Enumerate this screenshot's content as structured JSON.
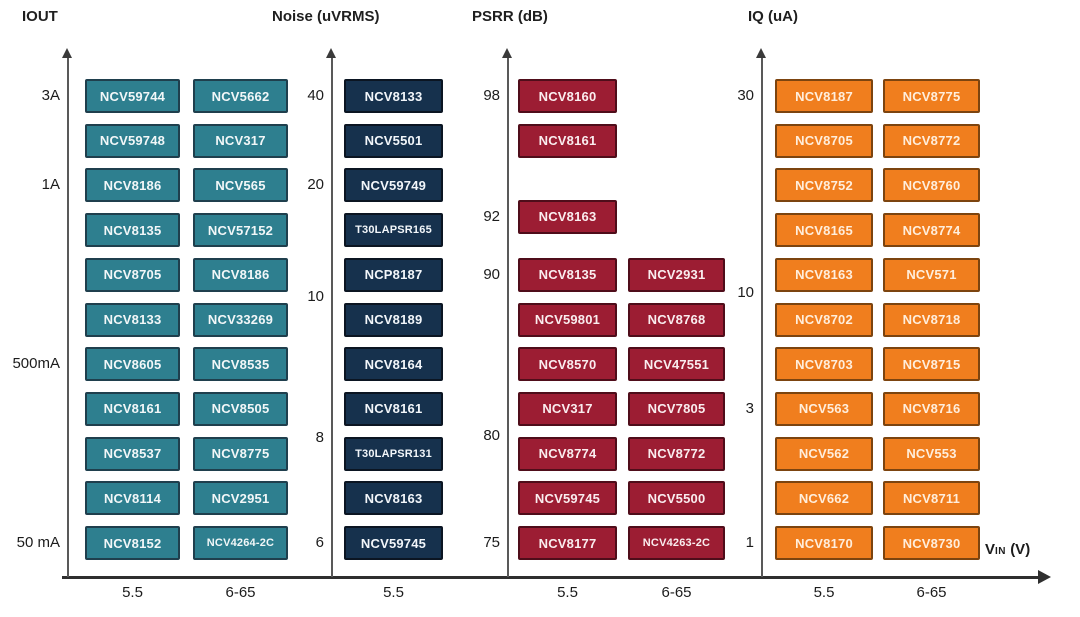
{
  "colors": {
    "axis_line": "#595959",
    "baseline": "#2f2f2f",
    "tick_text": "#1c1c1c",
    "boxes": {
      "teal": {
        "fill": "#2E7F8F",
        "border": "#1F3F4D",
        "text": "#F2F7F8"
      },
      "navy": {
        "fill": "#16314D",
        "border": "#0B1522",
        "text": "#F2F6FA"
      },
      "crimson": {
        "fill": "#9C1D33",
        "border": "#4F0D1A",
        "text": "#FAEDEF"
      },
      "orange": {
        "fill": "#F07E1E",
        "border": "#7C440F",
        "text": "#FFEEDC"
      }
    }
  },
  "x_axis": {
    "main": "V",
    "sub": "IN",
    "rest": "(V)"
  },
  "chart_data": {
    "type": "table",
    "title": "",
    "xlabel": "VIN (V)",
    "x_categories": [
      "5.5",
      "6-65"
    ],
    "row_count": 11,
    "legend_position": "none",
    "grid": false,
    "panels": [
      {
        "title": "IOUT",
        "color": "teal",
        "yticks": [
          {
            "label": "3A",
            "row": 1
          },
          {
            "label": "1A",
            "row": 3
          },
          {
            "label": "500mA",
            "row": 7
          },
          {
            "label": "50 mA",
            "row": 11
          }
        ],
        "columns": [
          {
            "vin": "5.5",
            "parts": [
              "NCV59744",
              "NCV59748",
              "NCV8186",
              "NCV8135",
              "NCV8705",
              "NCV8133",
              "NCV8605",
              "NCV8161",
              "NCV8537",
              "NCV8114",
              "NCV8152"
            ]
          },
          {
            "vin": "6-65",
            "parts": [
              "NCV5662",
              "NCV317",
              "NCV565",
              "NCV57152",
              "NCV8186",
              "NCV33269",
              "NCV8535",
              "NCV8505",
              "NCV8775",
              "NCV2951",
              "NCV4264-2C"
            ]
          }
        ]
      },
      {
        "title": "Noise (uVRMS)",
        "color": "navy",
        "yticks": [
          {
            "label": "40",
            "row": 1
          },
          {
            "label": "20",
            "row": 3
          },
          {
            "label": "10",
            "row": 5.5
          },
          {
            "label": "8",
            "row": 8.65
          },
          {
            "label": "6",
            "row": 11
          }
        ],
        "columns": [
          {
            "vin": "5.5",
            "parts": [
              "NCV8133",
              "NCV5501",
              "NCV59749",
              "T30LAPSR165",
              "NCP8187",
              "NCV8189",
              "NCV8164",
              "NCV8161",
              "T30LAPSR131",
              "NCV8163",
              "NCV59745"
            ]
          }
        ]
      },
      {
        "title": "PSRR (dB)",
        "color": "crimson",
        "yticks": [
          {
            "label": "98",
            "row": 1
          },
          {
            "label": "92",
            "row": 3.7
          },
          {
            "label": "90",
            "row": 5
          },
          {
            "label": "80",
            "row": 8.6
          },
          {
            "label": "75",
            "row": 11
          }
        ],
        "columns": [
          {
            "vin": "5.5",
            "parts": [
              "NCV8160",
              "NCV8161",
              "NCV8163",
              "NCV8135",
              "NCV59801",
              "NCV8570",
              "NCV317",
              "NCV8774",
              "NCV59745",
              "NCV8177"
            ],
            "rows": [
              1,
              2,
              3.7,
              5,
              6,
              7,
              8,
              9,
              10,
              11
            ]
          },
          {
            "vin": "6-65",
            "parts": [
              "NCV2931",
              "NCV8768",
              "NCV47551",
              "NCV7805",
              "NCV8772",
              "NCV5500",
              "NCV4263-2C"
            ],
            "rows": [
              5,
              6,
              7,
              8,
              9,
              10,
              11
            ]
          }
        ]
      },
      {
        "title": "IQ (uA)",
        "color": "orange",
        "yticks": [
          {
            "label": "30",
            "row": 1
          },
          {
            "label": "10",
            "row": 5.4
          },
          {
            "label": "3",
            "row": 8
          },
          {
            "label": "1",
            "row": 11
          }
        ],
        "columns": [
          {
            "vin": "5.5",
            "parts": [
              "NCV8187",
              "NCV8705",
              "NCV8752",
              "NCV8165",
              "NCV8163",
              "NCV8702",
              "NCV8703",
              "NCV563",
              "NCV562",
              "NCV662",
              "NCV8170"
            ]
          },
          {
            "vin": "6-65",
            "parts": [
              "NCV8775",
              "NCV8772",
              "NCV8760",
              "NCV8774",
              "NCV571",
              "NCV8718",
              "NCV8715",
              "NCV8716",
              "NCV553",
              "NCV8711",
              "NCV8730"
            ]
          }
        ]
      }
    ]
  }
}
